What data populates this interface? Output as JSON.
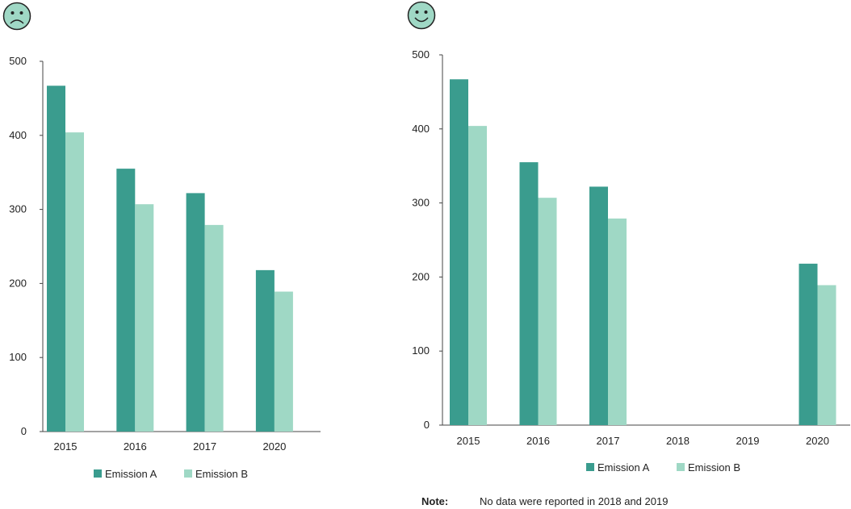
{
  "colors": {
    "emission_a": "#3a9c8e",
    "emission_b": "#9fd8c5",
    "axis": "#444444",
    "face_fill": "#9fd8c5",
    "face_stroke": "#222222",
    "text": "#222222"
  },
  "icons": {
    "left": "sad-face-icon",
    "right": "happy-face-icon"
  },
  "note": {
    "label": "Note:",
    "text": "No data were reported in 2018 and 2019"
  },
  "chart_data": [
    {
      "type": "bar",
      "categories": [
        "2015",
        "2016",
        "2017",
        "2020"
      ],
      "series": [
        {
          "name": "Emission A",
          "values": [
            467,
            355,
            322,
            218
          ]
        },
        {
          "name": "Emission B",
          "values": [
            404,
            307,
            279,
            189
          ]
        }
      ],
      "yticks": [
        0,
        100,
        200,
        300,
        400,
        500
      ],
      "ylim": [
        0,
        500
      ],
      "xlabel": "",
      "ylabel": "",
      "title": "",
      "legend": "bottom-center",
      "grid": false
    },
    {
      "type": "bar",
      "categories": [
        "2015",
        "2016",
        "2017",
        "2018",
        "2019",
        "2020"
      ],
      "series": [
        {
          "name": "Emission A",
          "values": [
            467,
            355,
            322,
            null,
            null,
            218
          ]
        },
        {
          "name": "Emission B",
          "values": [
            404,
            307,
            279,
            null,
            null,
            189
          ]
        }
      ],
      "yticks": [
        0,
        100,
        200,
        300,
        400,
        500
      ],
      "ylim": [
        0,
        500
      ],
      "xlabel": "",
      "ylabel": "",
      "title": "",
      "legend": "bottom-center",
      "grid": false
    }
  ]
}
